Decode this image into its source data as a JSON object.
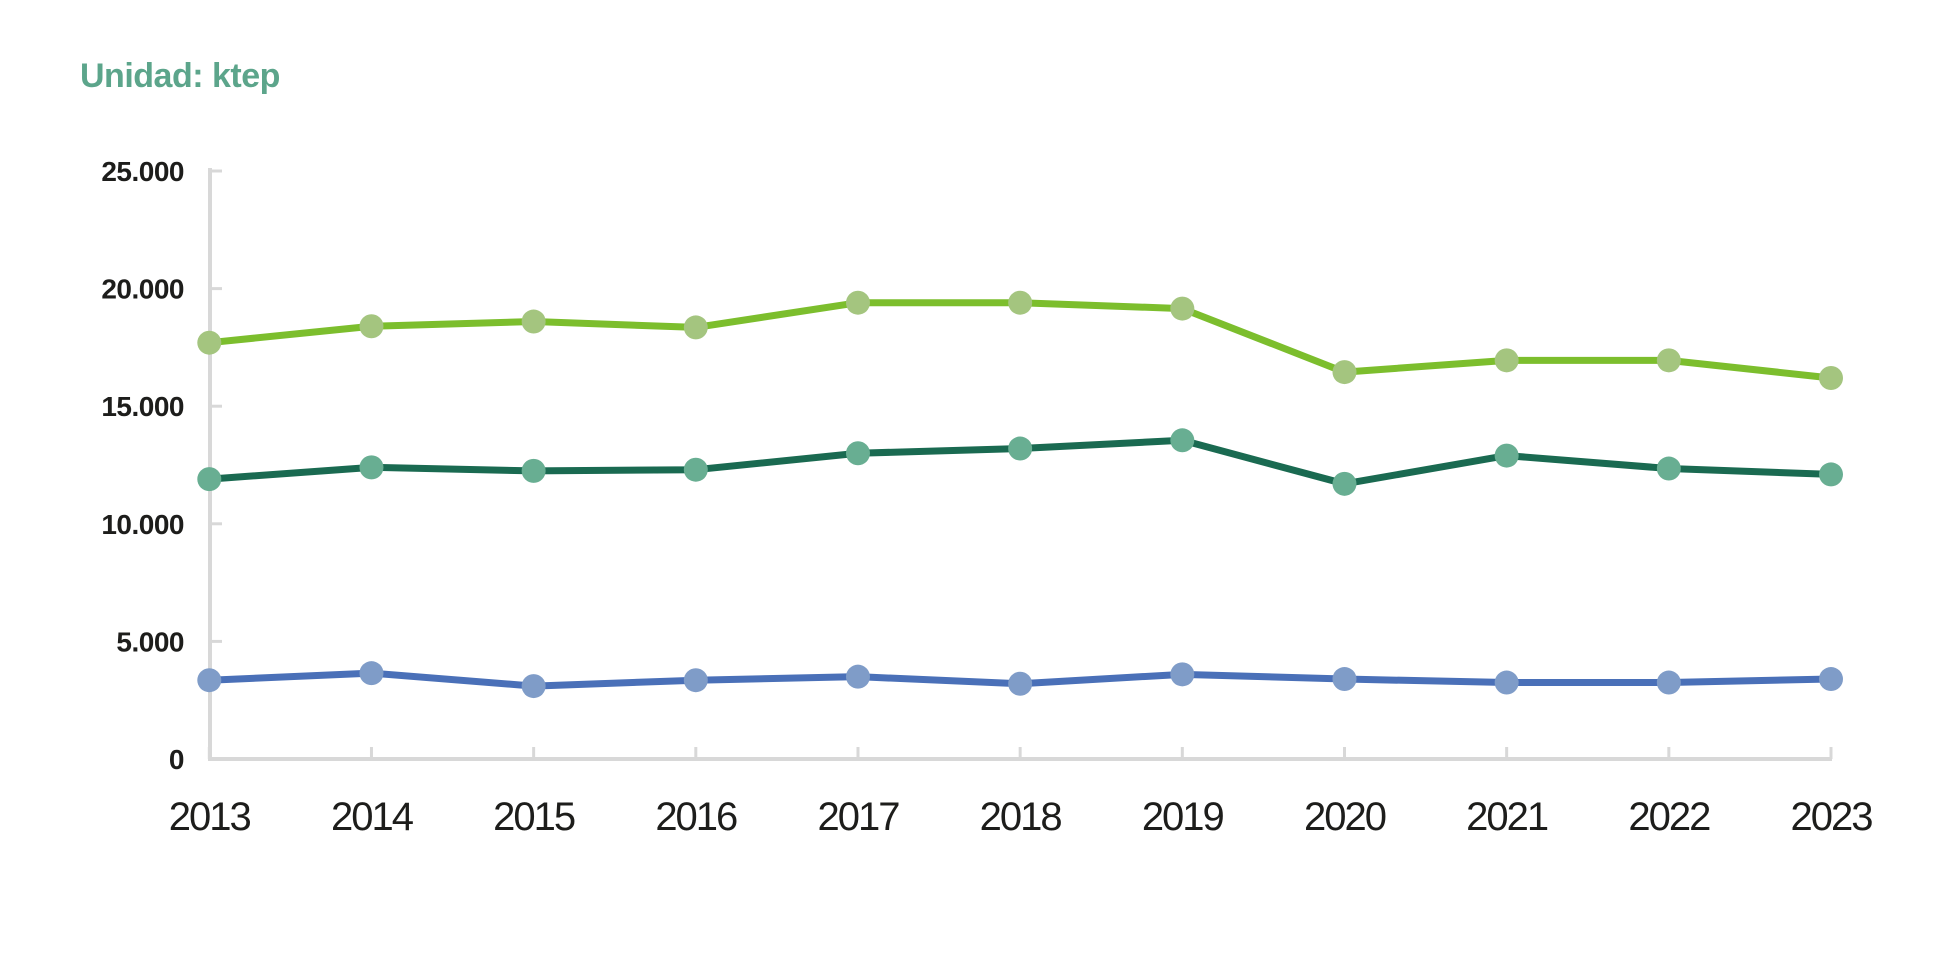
{
  "chart": {
    "unit_label": "Unidad: ktep",
    "unit_label_color": "#5ca58b"
  },
  "chart_data": {
    "type": "line",
    "title": "Unidad: ktep",
    "xlabel": "",
    "ylabel": "",
    "categories": [
      "2013",
      "2014",
      "2015",
      "2016",
      "2017",
      "2018",
      "2019",
      "2020",
      "2021",
      "2022",
      "2023"
    ],
    "series": [
      {
        "name": "series-light-green",
        "line_color": "#7cbe2d",
        "marker_color": "#a4c57f",
        "values": [
          17700,
          18400,
          18600,
          18350,
          19400,
          19400,
          19150,
          16450,
          16950,
          16950,
          16200
        ]
      },
      {
        "name": "series-dark-green",
        "line_color": "#1a6a51",
        "marker_color": "#68ae92",
        "values": [
          11900,
          12400,
          12250,
          12300,
          13000,
          13200,
          13550,
          11700,
          12900,
          12350,
          12100
        ]
      },
      {
        "name": "series-blue",
        "line_color": "#4a70b8",
        "marker_color": "#7f9cc8",
        "values": [
          3350,
          3650,
          3100,
          3350,
          3500,
          3200,
          3600,
          3400,
          3250,
          3250,
          3400
        ]
      }
    ],
    "y_ticks": [
      {
        "value": 25000,
        "label": "25.000"
      },
      {
        "value": 20000,
        "label": "20.000"
      },
      {
        "value": 15000,
        "label": "15.000"
      },
      {
        "value": 10000,
        "label": "10.000"
      },
      {
        "value": 5000,
        "label": "5.000"
      },
      {
        "value": 0,
        "label": "0"
      }
    ],
    "ylim": [
      0,
      25000
    ],
    "legend": "none",
    "grid": "none",
    "axis_color": "#d8d8d8",
    "label_color": "#1d1d1b"
  }
}
